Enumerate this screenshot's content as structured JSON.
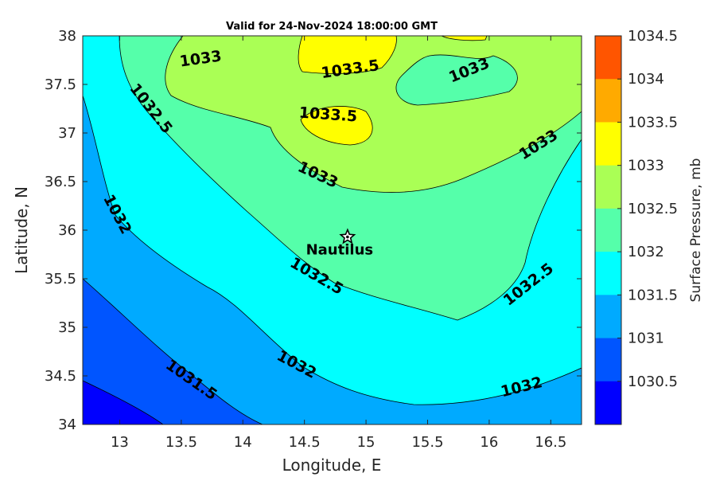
{
  "title": "Valid for 24-Nov-2024 18:00:00 GMT",
  "axes": {
    "xlabel": "Longitude, E",
    "ylabel": "Latitude, N",
    "xticks": [
      "13",
      "13.5",
      "14",
      "14.5",
      "15",
      "15.5",
      "16",
      "16.5"
    ],
    "yticks": [
      "38",
      "37.5",
      "37",
      "36.5",
      "36",
      "35.5",
      "35",
      "34.5",
      "34"
    ],
    "xlim": [
      12.7,
      16.75
    ],
    "ylim": [
      34,
      38
    ]
  },
  "colorbar": {
    "label": "Surface Pressure, mb",
    "ticks": [
      "1034.5",
      "1034",
      "1033.5",
      "1033",
      "1032.5",
      "1032",
      "1031.5",
      "1031",
      "1030.5"
    ],
    "levels": [
      {
        "range": "1034-1034.5",
        "color": "#ff5500"
      },
      {
        "range": "1033.5-1034",
        "color": "#ffaa00"
      },
      {
        "range": "1033-1033.5",
        "color": "#ffff00"
      },
      {
        "range": "1032.5-1033",
        "color": "#aaff55"
      },
      {
        "range": "1032-1032.5",
        "color": "#55ffaa"
      },
      {
        "range": "1031.5-1032",
        "color": "#00ffff"
      },
      {
        "range": "1031-1031.5",
        "color": "#00aaff"
      },
      {
        "range": "1030.5-1031",
        "color": "#0055ff"
      },
      {
        "range": "1030-1030.5",
        "color": "#0000ff"
      }
    ]
  },
  "contour_labels": [
    {
      "text": "1033",
      "name": "contour-label-1033-a"
    },
    {
      "text": "1033.5",
      "name": "contour-label-1033-5-a"
    },
    {
      "text": "1033",
      "name": "contour-label-1033-b"
    },
    {
      "text": "1032.5",
      "name": "contour-label-1032-5-a"
    },
    {
      "text": "1033.5",
      "name": "contour-label-1033-5-b"
    },
    {
      "text": "1033",
      "name": "contour-label-1033-c"
    },
    {
      "text": "1033",
      "name": "contour-label-1033-d"
    },
    {
      "text": "1032",
      "name": "contour-label-1032-a"
    },
    {
      "text": "1032.5",
      "name": "contour-label-1032-5-b"
    },
    {
      "text": "1032.5",
      "name": "contour-label-1032-5-c"
    },
    {
      "text": "1032",
      "name": "contour-label-1032-b"
    },
    {
      "text": "1031.5",
      "name": "contour-label-1031-5"
    },
    {
      "text": "1032",
      "name": "contour-label-1032-c"
    }
  ],
  "marker": {
    "label": "Nautilus",
    "lon": 14.85,
    "lat": 35.93,
    "icon": "star-icon"
  }
}
